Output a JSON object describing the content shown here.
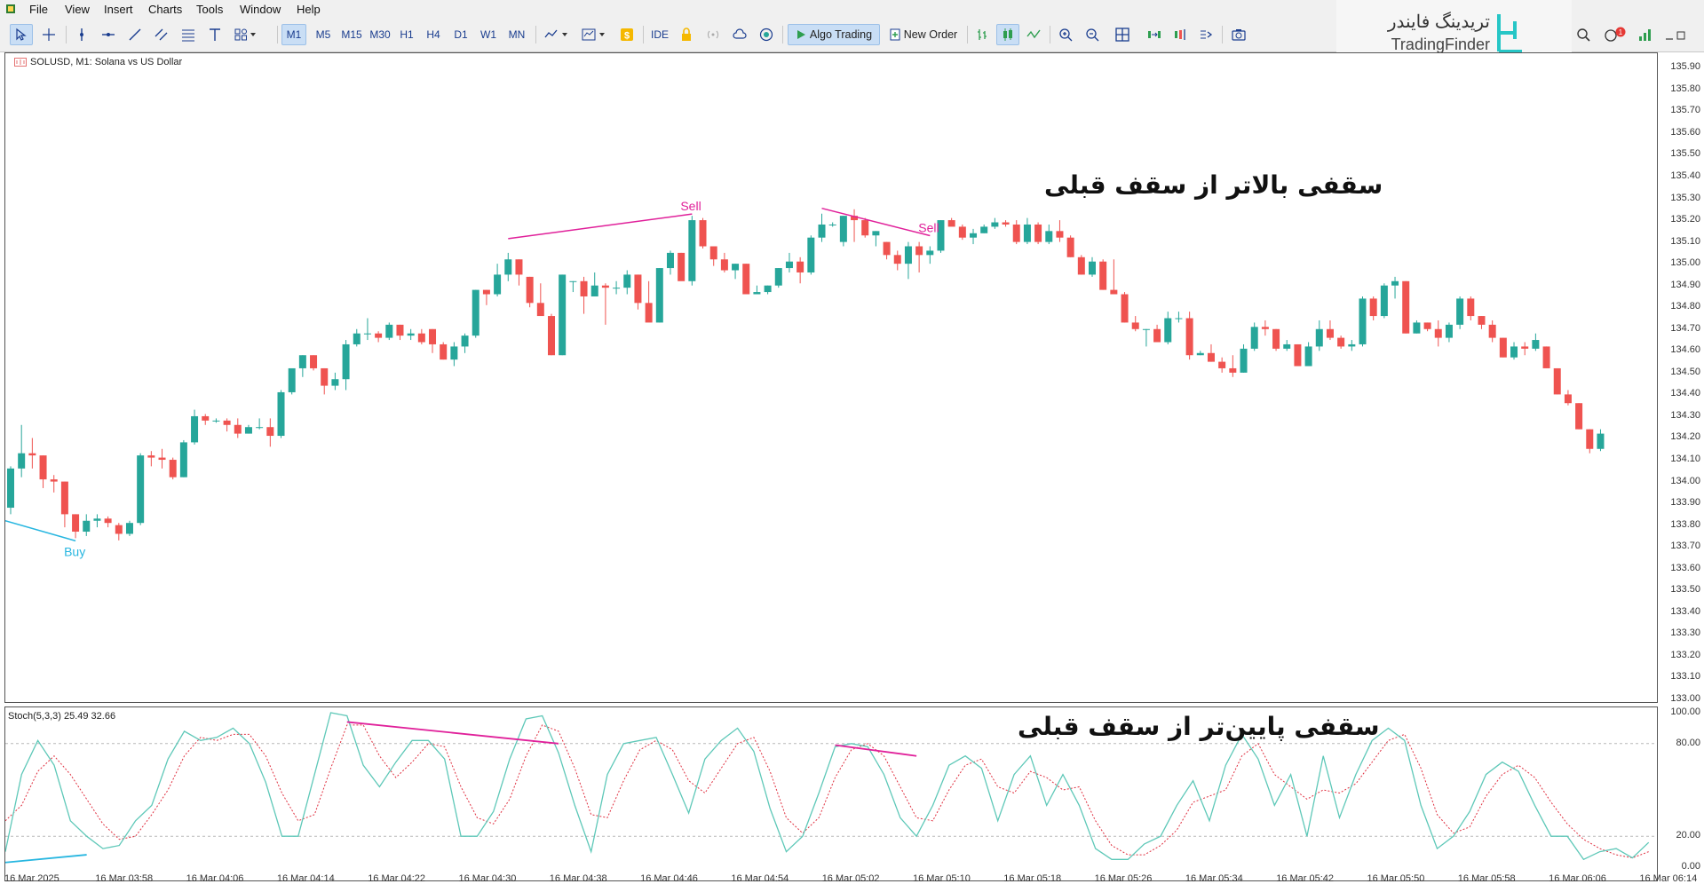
{
  "menu": [
    "File",
    "View",
    "Insert",
    "Charts",
    "Tools",
    "Window",
    "Help"
  ],
  "toolbar": {
    "timeframes": [
      "M1",
      "M5",
      "M15",
      "M30",
      "H1",
      "H4",
      "D1",
      "W1",
      "MN"
    ],
    "active_timeframe": "M1",
    "ide_label": "IDE",
    "algo_label": "Algo Trading",
    "order_label": "New Order",
    "notification_count": "1"
  },
  "logo": {
    "fa": "تریدینگ فایندر",
    "en": "TradingFinder"
  },
  "chart": {
    "title": "SOLUSD, M1:  Solana vs US Dollar",
    "indicator_title": "Stoch(5,3,3) 25.49 32.66",
    "price_levels": [
      "135.90",
      "135.80",
      "135.70",
      "135.60",
      "135.50",
      "135.40",
      "135.30",
      "135.20",
      "135.10",
      "135.00",
      "134.90",
      "134.80",
      "134.70",
      "134.60",
      "134.50",
      "134.40",
      "134.30",
      "134.20",
      "134.10",
      "134.00",
      "133.90",
      "133.80",
      "133.70",
      "133.60",
      "133.50",
      "133.40",
      "133.30",
      "133.20",
      "133.10",
      "133.00"
    ],
    "stoch_levels": [
      "100.00",
      "80.00",
      "20.00",
      "0.00"
    ],
    "time_labels": [
      "16 Mar 2025",
      "16 Mar 03:58",
      "16 Mar 04:06",
      "16 Mar 04:14",
      "16 Mar 04:22",
      "16 Mar 04:30",
      "16 Mar 04:38",
      "16 Mar 04:46",
      "16 Mar 04:54",
      "16 Mar 05:02",
      "16 Mar 05:10",
      "16 Mar 05:18",
      "16 Mar 05:26",
      "16 Mar 05:34",
      "16 Mar 05:42",
      "16 Mar 05:50",
      "16 Mar 05:58",
      "16 Mar 06:06",
      "16 Mar 06:14"
    ],
    "signals": {
      "buy": "Buy",
      "sell1": "Sell",
      "sell2": "Sell"
    },
    "annotation_top": "سقفی بالاتر از سقف قبلی",
    "annotation_bottom": "سقفی پایین‌تر از سقف قبلی",
    "colors": {
      "bull": "#26a69a",
      "bear": "#ef5350",
      "sell": "#e0209a",
      "buy": "#27b6e0",
      "stoch_main": "#5ec8b8",
      "stoch_signal": "#e03040"
    }
  },
  "chart_data": {
    "type": "candlestick",
    "symbol": "SOLUSD",
    "timeframe": "M1",
    "ylim": [
      133.0,
      135.95
    ],
    "candles_ohlc": [
      [
        133.88,
        134.07,
        133.85,
        134.06
      ],
      [
        134.06,
        134.26,
        134.02,
        134.13
      ],
      [
        134.13,
        134.2,
        134.06,
        134.12
      ],
      [
        134.12,
        134.12,
        133.97,
        134.01
      ],
      [
        134.01,
        134.03,
        133.95,
        134.0
      ],
      [
        134.0,
        134.0,
        133.79,
        133.85
      ],
      [
        133.85,
        133.85,
        133.74,
        133.77
      ],
      [
        133.77,
        133.85,
        133.75,
        133.82
      ],
      [
        133.82,
        133.85,
        133.79,
        133.83
      ],
      [
        133.83,
        133.84,
        133.79,
        133.81
      ],
      [
        133.8,
        133.81,
        133.73,
        133.76
      ],
      [
        133.76,
        133.82,
        133.75,
        133.81
      ],
      [
        133.81,
        134.13,
        133.8,
        134.12
      ],
      [
        134.12,
        134.14,
        134.07,
        134.11
      ],
      [
        134.11,
        134.15,
        134.06,
        134.1
      ],
      [
        134.1,
        134.11,
        134.01,
        134.02
      ],
      [
        134.02,
        134.19,
        134.02,
        134.18
      ],
      [
        134.18,
        134.33,
        134.17,
        134.3
      ],
      [
        134.3,
        134.31,
        134.26,
        134.28
      ],
      [
        134.28,
        134.29,
        134.27,
        134.28
      ],
      [
        134.28,
        134.29,
        134.23,
        134.26
      ],
      [
        134.26,
        134.29,
        134.2,
        134.22
      ],
      [
        134.22,
        134.26,
        134.22,
        134.25
      ],
      [
        134.25,
        134.29,
        134.24,
        134.25
      ],
      [
        134.25,
        134.29,
        134.16,
        134.21
      ],
      [
        134.21,
        134.42,
        134.2,
        134.41
      ],
      [
        134.41,
        134.51,
        134.4,
        134.52
      ],
      [
        134.52,
        134.58,
        134.48,
        134.58
      ],
      [
        134.58,
        134.58,
        134.51,
        134.52
      ],
      [
        134.52,
        134.52,
        134.4,
        134.44
      ],
      [
        134.44,
        134.5,
        134.42,
        134.47
      ],
      [
        134.47,
        134.65,
        134.42,
        134.63
      ],
      [
        134.63,
        134.7,
        134.62,
        134.68
      ],
      [
        134.68,
        134.75,
        134.65,
        134.68
      ],
      [
        134.68,
        134.69,
        134.64,
        134.66
      ],
      [
        134.66,
        134.73,
        134.65,
        134.72
      ],
      [
        134.72,
        134.72,
        134.65,
        134.67
      ],
      [
        134.67,
        134.7,
        134.65,
        134.68
      ],
      [
        134.68,
        134.7,
        134.63,
        134.64
      ],
      [
        134.7,
        134.7,
        134.59,
        134.63
      ],
      [
        134.63,
        134.64,
        134.56,
        134.56
      ],
      [
        134.56,
        134.64,
        134.53,
        134.62
      ],
      [
        134.62,
        134.68,
        134.59,
        134.67
      ],
      [
        134.67,
        134.88,
        134.66,
        134.88
      ],
      [
        134.88,
        134.88,
        134.81,
        134.86
      ],
      [
        134.86,
        135.0,
        134.85,
        134.95
      ],
      [
        134.95,
        135.05,
        134.92,
        135.02
      ],
      [
        135.02,
        135.02,
        134.9,
        134.95
      ],
      [
        134.94,
        134.94,
        134.8,
        134.82
      ],
      [
        134.82,
        134.91,
        134.78,
        134.76
      ],
      [
        134.76,
        134.77,
        134.58,
        134.58
      ],
      [
        134.58,
        134.95,
        134.58,
        134.95
      ],
      [
        134.92,
        134.92,
        134.87,
        134.92
      ],
      [
        134.92,
        134.94,
        134.77,
        134.85
      ],
      [
        134.85,
        134.96,
        134.85,
        134.9
      ],
      [
        134.9,
        134.91,
        134.72,
        134.89
      ],
      [
        134.89,
        134.92,
        134.86,
        134.89
      ],
      [
        134.89,
        134.97,
        134.86,
        134.95
      ],
      [
        134.95,
        134.95,
        134.79,
        134.82
      ],
      [
        134.82,
        134.92,
        134.74,
        134.73
      ],
      [
        134.73,
        134.98,
        134.73,
        134.98
      ],
      [
        134.98,
        135.06,
        134.95,
        135.05
      ],
      [
        135.05,
        135.05,
        134.94,
        134.92
      ],
      [
        134.92,
        135.22,
        134.9,
        135.2
      ],
      [
        135.2,
        135.21,
        135.07,
        135.08
      ],
      [
        135.08,
        135.08,
        134.99,
        135.02
      ],
      [
        135.02,
        135.05,
        134.96,
        134.97
      ],
      [
        134.97,
        135.0,
        134.93,
        135.0
      ],
      [
        135.0,
        135.0,
        134.86,
        134.86
      ],
      [
        134.86,
        134.9,
        134.86,
        134.87
      ],
      [
        134.87,
        134.9,
        134.86,
        134.9
      ],
      [
        134.9,
        134.98,
        134.89,
        134.98
      ],
      [
        134.98,
        135.05,
        134.96,
        135.01
      ],
      [
        135.01,
        135.03,
        134.91,
        134.96
      ],
      [
        134.96,
        135.13,
        134.95,
        135.12
      ],
      [
        135.12,
        135.23,
        135.1,
        135.18
      ],
      [
        135.18,
        135.19,
        135.17,
        135.18
      ],
      [
        135.1,
        135.22,
        135.08,
        135.22
      ],
      [
        135.22,
        135.25,
        135.1,
        135.2
      ],
      [
        135.2,
        135.21,
        135.12,
        135.13
      ],
      [
        135.13,
        135.15,
        135.08,
        135.15
      ],
      [
        135.1,
        135.1,
        135.02,
        135.04
      ],
      [
        135.04,
        135.06,
        134.97,
        135.0
      ],
      [
        135.0,
        135.1,
        134.93,
        135.08
      ],
      [
        135.08,
        135.1,
        134.96,
        135.04
      ],
      [
        135.04,
        135.08,
        135.0,
        135.06
      ],
      [
        135.06,
        135.2,
        135.05,
        135.2
      ],
      [
        135.2,
        135.21,
        135.18,
        135.17
      ],
      [
        135.17,
        135.18,
        135.11,
        135.12
      ],
      [
        135.12,
        135.16,
        135.09,
        135.14
      ],
      [
        135.14,
        135.18,
        135.14,
        135.17
      ],
      [
        135.17,
        135.21,
        135.16,
        135.19
      ],
      [
        135.19,
        135.2,
        135.17,
        135.18
      ],
      [
        135.18,
        135.2,
        135.09,
        135.1
      ],
      [
        135.1,
        135.21,
        135.09,
        135.18
      ],
      [
        135.18,
        135.19,
        135.09,
        135.1
      ],
      [
        135.1,
        135.18,
        135.09,
        135.15
      ],
      [
        135.15,
        135.2,
        135.1,
        135.12
      ],
      [
        135.12,
        135.13,
        135.03,
        135.03
      ],
      [
        135.03,
        135.04,
        134.95,
        134.95
      ],
      [
        134.95,
        135.03,
        134.94,
        135.01
      ],
      [
        135.01,
        135.02,
        134.88,
        134.88
      ],
      [
        134.88,
        135.02,
        134.87,
        134.86
      ],
      [
        134.86,
        134.87,
        134.73,
        134.73
      ],
      [
        134.73,
        134.76,
        134.69,
        134.7
      ],
      [
        134.7,
        134.7,
        134.62,
        134.7
      ],
      [
        134.7,
        134.72,
        134.64,
        134.64
      ],
      [
        134.64,
        134.78,
        134.63,
        134.75
      ],
      [
        134.75,
        134.78,
        134.73,
        134.75
      ],
      [
        134.75,
        134.78,
        134.56,
        134.58
      ],
      [
        134.58,
        134.6,
        134.58,
        134.59
      ],
      [
        134.59,
        134.63,
        134.55,
        134.55
      ],
      [
        134.55,
        134.57,
        134.5,
        134.52
      ],
      [
        134.52,
        134.58,
        134.48,
        134.5
      ],
      [
        134.5,
        134.63,
        134.5,
        134.61
      ],
      [
        134.61,
        134.73,
        134.6,
        134.71
      ],
      [
        134.71,
        134.74,
        134.67,
        134.7
      ],
      [
        134.7,
        134.7,
        134.6,
        134.61
      ],
      [
        134.61,
        134.65,
        134.6,
        134.63
      ],
      [
        134.63,
        134.63,
        134.53,
        134.53
      ],
      [
        134.53,
        134.64,
        134.53,
        134.62
      ],
      [
        134.62,
        134.74,
        134.6,
        134.7
      ],
      [
        134.7,
        134.74,
        134.65,
        134.66
      ],
      [
        134.66,
        134.67,
        134.61,
        134.62
      ],
      [
        134.62,
        134.65,
        134.6,
        134.63
      ],
      [
        134.63,
        134.85,
        134.62,
        134.84
      ],
      [
        134.84,
        134.85,
        134.74,
        134.76
      ],
      [
        134.76,
        134.91,
        134.75,
        134.9
      ],
      [
        134.9,
        134.94,
        134.84,
        134.92
      ],
      [
        134.92,
        134.92,
        134.68,
        134.68
      ],
      [
        134.68,
        134.74,
        134.68,
        134.73
      ],
      [
        134.73,
        134.73,
        134.69,
        134.7
      ],
      [
        134.7,
        134.74,
        134.62,
        134.66
      ],
      [
        134.66,
        134.73,
        134.64,
        134.72
      ],
      [
        134.72,
        134.85,
        134.7,
        134.84
      ],
      [
        134.84,
        134.85,
        134.74,
        134.76
      ],
      [
        134.76,
        134.76,
        134.7,
        134.72
      ],
      [
        134.72,
        134.74,
        134.64,
        134.66
      ],
      [
        134.66,
        134.66,
        134.57,
        134.57
      ],
      [
        134.57,
        134.64,
        134.56,
        134.62
      ],
      [
        134.62,
        134.64,
        134.58,
        134.61
      ],
      [
        134.61,
        134.68,
        134.6,
        134.65
      ],
      [
        134.62,
        134.62,
        134.52,
        134.52
      ],
      [
        134.52,
        134.52,
        134.4,
        134.4
      ],
      [
        134.4,
        134.42,
        134.35,
        134.36
      ],
      [
        134.36,
        134.36,
        134.24,
        134.24
      ],
      [
        134.24,
        134.24,
        134.13,
        134.15
      ],
      [
        134.15,
        134.24,
        134.14,
        134.22
      ]
    ],
    "stochastic": {
      "params": "5,3,3",
      "levels": [
        80,
        20
      ],
      "main": [
        10,
        60,
        82,
        66,
        30,
        20,
        12,
        14,
        30,
        40,
        70,
        88,
        82,
        84,
        90,
        80,
        55,
        20,
        20,
        60,
        100,
        98,
        66,
        52,
        68,
        82,
        82,
        70,
        20,
        20,
        36,
        70,
        96,
        98,
        74,
        40,
        10,
        60,
        80,
        82,
        84,
        60,
        35,
        70,
        82,
        90,
        75,
        38,
        10,
        20,
        48,
        78,
        80,
        78,
        60,
        32,
        20,
        40,
        66,
        72,
        64,
        30,
        60,
        72,
        40,
        60,
        40,
        12,
        5,
        5,
        15,
        20,
        40,
        56,
        30,
        66,
        86,
        70,
        40,
        60,
        20,
        72,
        32,
        60,
        82,
        90,
        82,
        40,
        12,
        20,
        36,
        60,
        68,
        62,
        40,
        20,
        20,
        5,
        10,
        12,
        6,
        16
      ],
      "signal": [
        30,
        40,
        62,
        72,
        60,
        44,
        28,
        18,
        20,
        34,
        50,
        72,
        84,
        82,
        86,
        86,
        72,
        48,
        30,
        34,
        64,
        92,
        92,
        72,
        58,
        68,
        80,
        78,
        52,
        32,
        28,
        44,
        72,
        92,
        88,
        64,
        34,
        32,
        56,
        76,
        82,
        76,
        56,
        48,
        64,
        80,
        84,
        62,
        32,
        22,
        32,
        58,
        76,
        80,
        72,
        52,
        32,
        30,
        50,
        66,
        70,
        52,
        48,
        62,
        58,
        50,
        52,
        30,
        14,
        8,
        8,
        14,
        24,
        42,
        46,
        50,
        72,
        80,
        60,
        52,
        44,
        50,
        48,
        54,
        68,
        82,
        86,
        64,
        34,
        22,
        26,
        46,
        60,
        66,
        58,
        42,
        28,
        18,
        12,
        8,
        6,
        10
      ]
    }
  }
}
